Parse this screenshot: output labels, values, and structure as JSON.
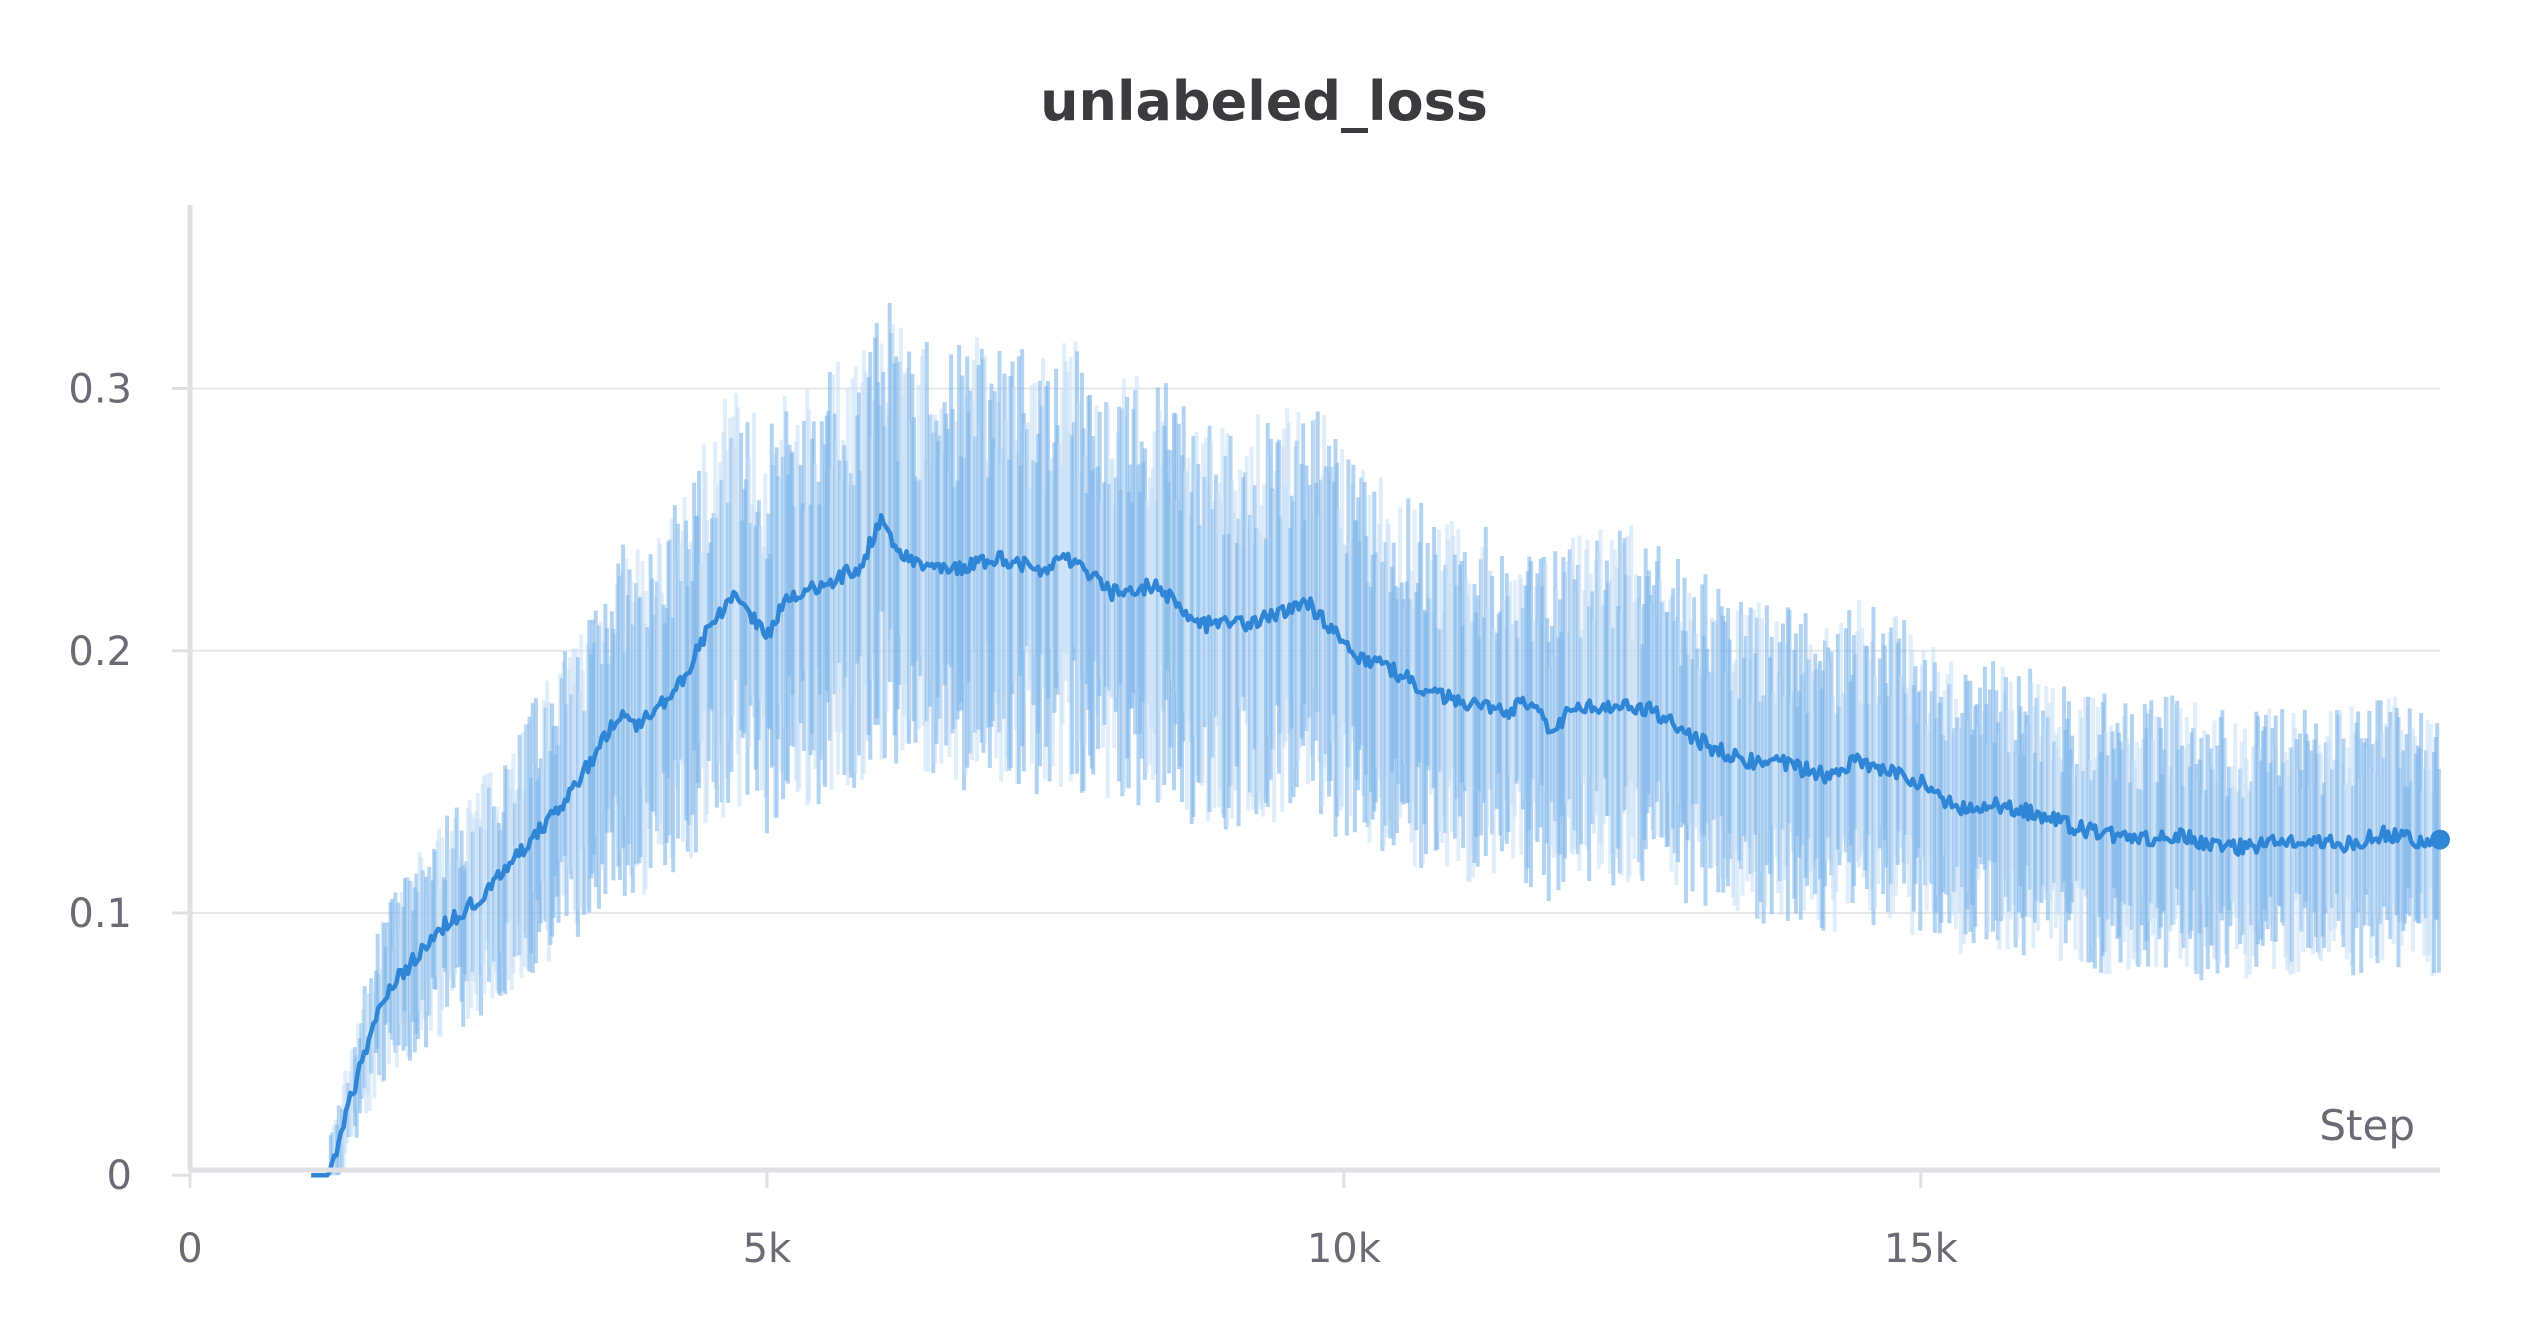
{
  "chart_data": {
    "type": "line",
    "title": "unlabeled_loss",
    "xlabel": "Step",
    "ylabel": "",
    "xlim": [
      0,
      19500
    ],
    "ylim": [
      0,
      0.37
    ],
    "x_ticks": [
      0,
      5000,
      10000,
      15000
    ],
    "x_tick_labels": [
      "0",
      "5k",
      "10k",
      "15k"
    ],
    "y_ticks": [
      0,
      0.1,
      0.2,
      0.3
    ],
    "y_tick_labels": [
      "0",
      "0.1",
      "0.2",
      "0.3"
    ],
    "grid": true,
    "colors": {
      "line": "#2f86d6",
      "band": "#7fb6e9",
      "band_light": "#c6def5",
      "grid": "#e6e7ea",
      "axis": "#e0e0e4"
    },
    "series": [
      {
        "x": [
          1050,
          1200,
          1300,
          1500,
          1700,
          1900,
          2200,
          2500,
          2800,
          3000,
          3300,
          3500,
          3700,
          3900,
          4100,
          4300,
          4500,
          4600,
          4700,
          4850,
          5000,
          5100,
          5200,
          5500,
          5800,
          6000,
          6100,
          6300,
          6700,
          7000,
          7400,
          7600,
          8000,
          8400,
          8600,
          8800,
          9100,
          9400,
          9700,
          9900,
          10100,
          10400,
          10800,
          11100,
          11400,
          11600,
          11800,
          12000,
          12400,
          12700,
          12900,
          13200,
          13500,
          13800,
          14200,
          14400,
          14700,
          15000,
          15300,
          15600,
          16000,
          16300,
          16600,
          16900,
          17200,
          17500,
          17800,
          18100,
          18400,
          18700,
          19000,
          19300,
          19500
        ],
        "y": [
          0.0,
          0.0,
          0.015,
          0.045,
          0.07,
          0.08,
          0.095,
          0.105,
          0.12,
          0.13,
          0.145,
          0.16,
          0.175,
          0.172,
          0.18,
          0.19,
          0.21,
          0.215,
          0.22,
          0.215,
          0.205,
          0.215,
          0.22,
          0.225,
          0.232,
          0.25,
          0.24,
          0.232,
          0.232,
          0.236,
          0.23,
          0.235,
          0.222,
          0.225,
          0.215,
          0.21,
          0.21,
          0.213,
          0.218,
          0.208,
          0.198,
          0.193,
          0.183,
          0.18,
          0.177,
          0.18,
          0.17,
          0.178,
          0.18,
          0.177,
          0.17,
          0.163,
          0.158,
          0.157,
          0.152,
          0.158,
          0.155,
          0.15,
          0.14,
          0.142,
          0.138,
          0.133,
          0.13,
          0.128,
          0.13,
          0.126,
          0.125,
          0.127,
          0.127,
          0.126,
          0.13,
          0.128,
          0.128
        ]
      }
    ]
  }
}
